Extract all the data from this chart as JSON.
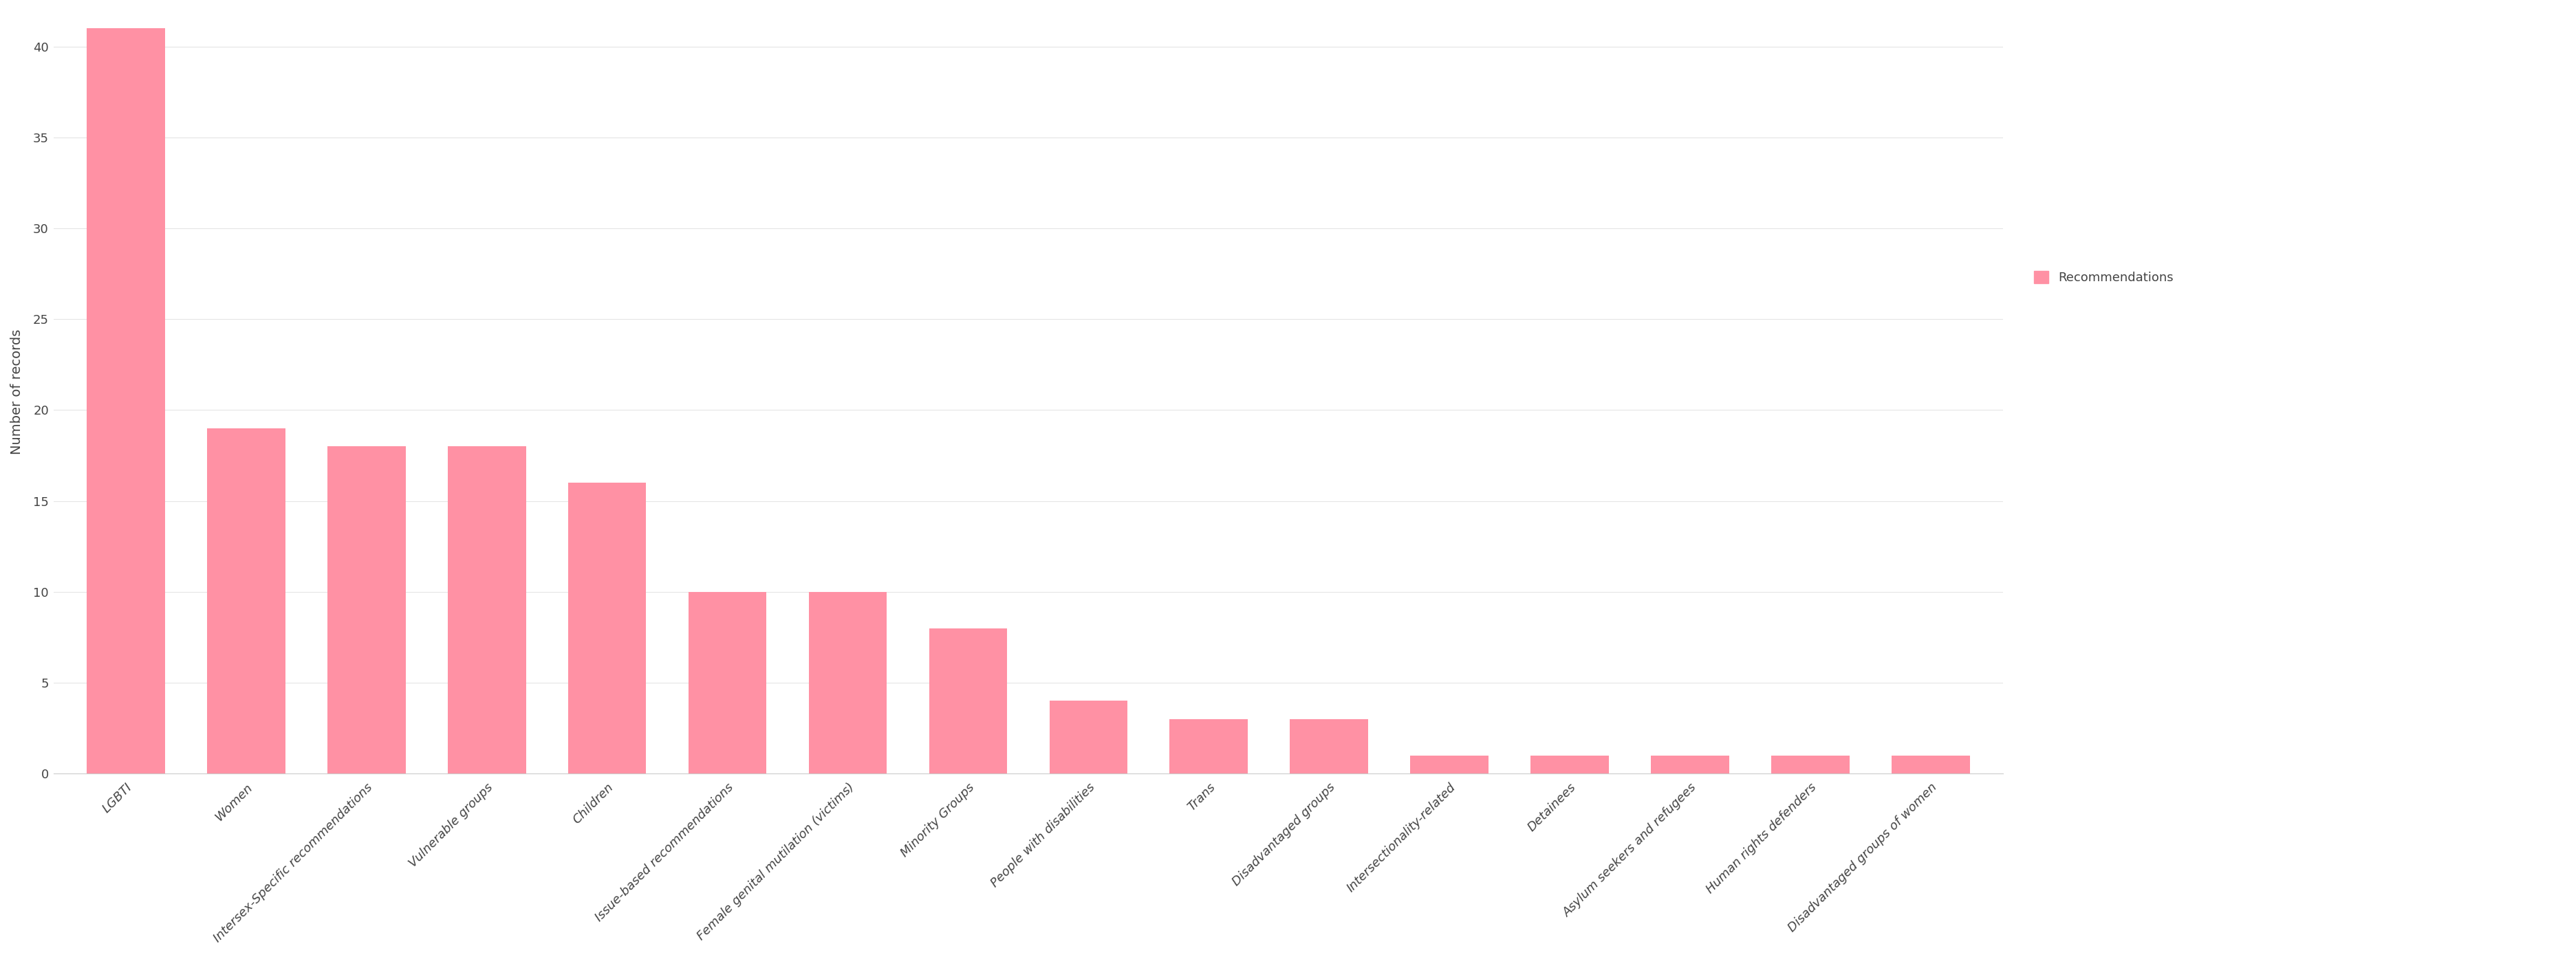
{
  "categories": [
    "LGBTI",
    "Women",
    "Intersex-Specific recommendations",
    "Vulnerable groups",
    "Children",
    "Issue-based recommendations",
    "Female genital mutilation (victims)",
    "Minority Groups",
    "People with disabilities",
    "Trans",
    "Disadvantaged groups",
    "Intersectionality-related",
    "Detainees",
    "Asylum seekers and refugees",
    "Human rights defenders",
    "Disadvantaged groups of women"
  ],
  "values": [
    41,
    19,
    18,
    18,
    16,
    10,
    10,
    8,
    4,
    3,
    3,
    1,
    1,
    1,
    1,
    1
  ],
  "bar_color": "#FF91A4",
  "ylabel": "Number of records",
  "ylim": [
    0,
    42
  ],
  "yticks": [
    0,
    5,
    10,
    15,
    20,
    25,
    30,
    35,
    40
  ],
  "legend_label": "Recommendations",
  "background_color": "#ffffff",
  "grid_color": "#e5e5e5",
  "tick_label_fontsize": 13,
  "ylabel_fontsize": 14,
  "legend_fontsize": 13
}
